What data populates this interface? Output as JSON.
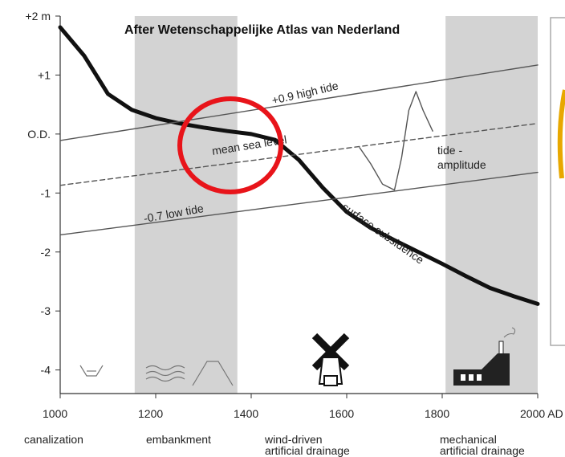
{
  "chart_data": {
    "type": "line",
    "title": "After Wetenschappelijke Atlas van Nederland",
    "xlim": [
      1000,
      2000
    ],
    "ylim": [
      -4.4,
      2
    ],
    "xticks": [
      1000,
      1200,
      1400,
      1600,
      1800,
      {
        "value": 2000,
        "label": "2000 AD"
      }
    ],
    "yticks": [
      {
        "value": 2,
        "label": "+2 m"
      },
      {
        "value": 1,
        "label": "+1"
      },
      {
        "value": 0,
        "label": "O.D."
      },
      -1,
      -2,
      -3,
      -4
    ],
    "shaded_periods": [
      [
        1156,
        1371
      ],
      [
        1807,
        2000
      ]
    ],
    "series": [
      {
        "color": "#111111",
        "x": [
          1000,
          1050,
          1100,
          1150,
          1200,
          1250,
          1300,
          1350,
          1400,
          1450,
          1500,
          1550,
          1600,
          1650,
          1700,
          1750,
          1800,
          1850,
          1900,
          1950,
          2000
        ],
        "values": [
          1.81,
          1.33,
          0.68,
          0.41,
          0.27,
          0.18,
          0.11,
          0.05,
          0,
          -0.1,
          -0.44,
          -0.91,
          -1.32,
          -1.59,
          -1.8,
          -2.0,
          -2.2,
          -2.41,
          -2.61,
          -2.75,
          -2.88
        ]
      },
      {
        "color": "#555555",
        "x": [
          1000,
          2000
        ],
        "values": [
          -0.11,
          1.17
        ]
      },
      {
        "color": "#555555",
        "dashed": true,
        "x": [
          1000,
          2000
        ],
        "values": [
          -0.87,
          0.18
        ]
      },
      {
        "color": "#555555",
        "x": [
          1000,
          2000
        ],
        "values": [
          -1.71,
          -0.65
        ]
      },
      {
        "color": "#555555",
        "x": [
          1627,
          1650,
          1675,
          1700,
          1715,
          1730,
          1745,
          1760,
          1780
        ],
        "values": [
          -0.23,
          -0.5,
          -0.85,
          -0.95,
          -0.4,
          0.4,
          0.72,
          0.4,
          0.05
        ]
      }
    ],
    "annotations": [
      "+0.9 high tide",
      "mean sea level",
      "-0.7 low tide",
      "tide -",
      "amplitude",
      "surface subsidence"
    ],
    "activities": [
      [
        "canalization"
      ],
      [
        "embankment"
      ],
      [
        "wind-driven",
        "artificial drainage"
      ],
      [
        "mechanical",
        "artificial drainage"
      ]
    ]
  }
}
